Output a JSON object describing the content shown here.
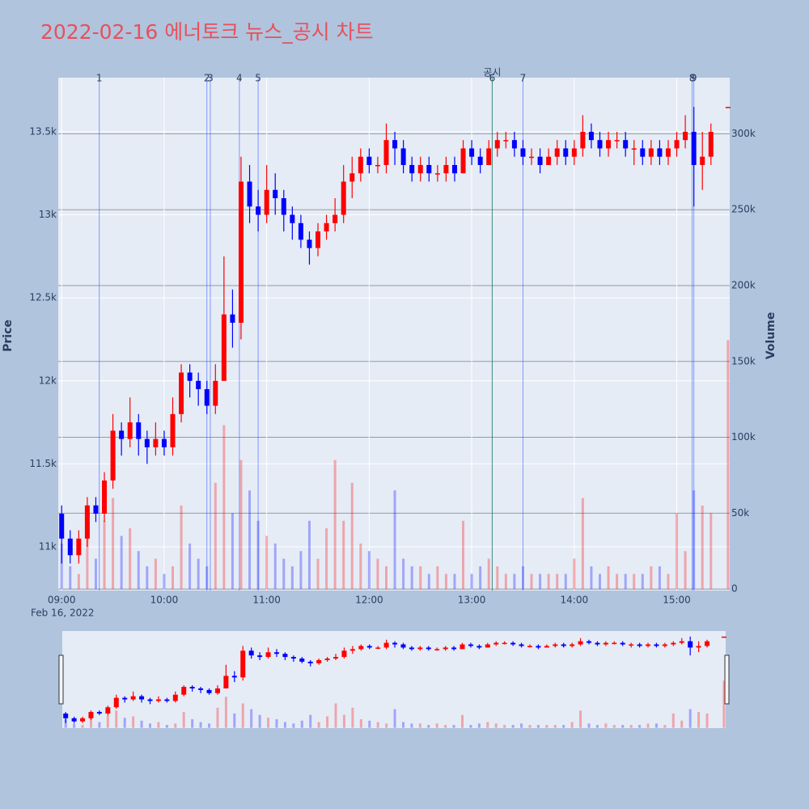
{
  "chart_data": {
    "type": "candlestick",
    "title": "2022-02-16 에너토크 뉴스_공시 차트",
    "y_label": "Price",
    "y2_label": "Volume",
    "x_date_label": "Feb 16, 2022",
    "x": [
      "09:00",
      "09:05",
      "09:10",
      "09:15",
      "09:20",
      "09:25",
      "09:30",
      "09:35",
      "09:40",
      "09:45",
      "09:50",
      "09:55",
      "10:00",
      "10:05",
      "10:10",
      "10:15",
      "10:20",
      "10:25",
      "10:30",
      "10:35",
      "10:40",
      "10:45",
      "10:50",
      "10:55",
      "11:00",
      "11:05",
      "11:10",
      "11:15",
      "11:20",
      "11:25",
      "11:30",
      "11:35",
      "11:40",
      "11:45",
      "11:50",
      "11:55",
      "12:00",
      "12:05",
      "12:10",
      "12:15",
      "12:20",
      "12:25",
      "12:30",
      "12:35",
      "12:40",
      "12:45",
      "12:50",
      "12:55",
      "13:00",
      "13:05",
      "13:10",
      "13:15",
      "13:20",
      "13:25",
      "13:30",
      "13:35",
      "13:40",
      "13:45",
      "13:50",
      "13:55",
      "14:00",
      "14:05",
      "14:10",
      "14:15",
      "14:20",
      "14:25",
      "14:30",
      "14:35",
      "14:40",
      "14:45",
      "14:50",
      "14:55",
      "15:00",
      "15:05",
      "15:10",
      "15:15",
      "15:20",
      "15:30"
    ],
    "open": [
      11200,
      11050,
      10950,
      11050,
      11250,
      11200,
      11400,
      11700,
      11650,
      11750,
      11650,
      11600,
      11650,
      11600,
      11800,
      12050,
      12000,
      11950,
      11850,
      12000,
      12400,
      12350,
      13200,
      13050,
      13000,
      13150,
      13100,
      13000,
      12950,
      12850,
      12800,
      12900,
      12950,
      13000,
      13200,
      13250,
      13350,
      13300,
      13300,
      13450,
      13400,
      13300,
      13250,
      13300,
      13250,
      13250,
      13300,
      13250,
      13400,
      13350,
      13300,
      13400,
      13450,
      13450,
      13400,
      13350,
      13350,
      13300,
      13350,
      13400,
      13350,
      13400,
      13500,
      13450,
      13400,
      13450,
      13450,
      13400,
      13400,
      13350,
      13400,
      13350,
      13400,
      13450,
      13500,
      13300,
      13350,
      13650
    ],
    "high": [
      11250,
      11100,
      11100,
      11300,
      11300,
      11450,
      11800,
      11750,
      11900,
      11800,
      11700,
      11750,
      11700,
      11900,
      12100,
      12100,
      12050,
      12000,
      12100,
      12750,
      12550,
      13350,
      13300,
      13150,
      13300,
      13250,
      13150,
      13050,
      13000,
      12900,
      12950,
      13000,
      13100,
      13300,
      13350,
      13400,
      13400,
      13350,
      13550,
      13500,
      13450,
      13350,
      13350,
      13350,
      13300,
      13350,
      13350,
      13450,
      13450,
      13400,
      13450,
      13500,
      13500,
      13500,
      13450,
      13400,
      13400,
      13400,
      13450,
      13450,
      13450,
      13600,
      13550,
      13500,
      13500,
      13500,
      13500,
      13450,
      13450,
      13450,
      13450,
      13450,
      13500,
      13600,
      13650,
      13500,
      13550,
      13650
    ],
    "low": [
      10900,
      10900,
      10900,
      11000,
      11150,
      11150,
      11350,
      11550,
      11600,
      11550,
      11500,
      11550,
      11550,
      11550,
      11750,
      11900,
      11850,
      11800,
      11800,
      12000,
      12200,
      12250,
      12950,
      12900,
      12950,
      13000,
      12900,
      12850,
      12800,
      12700,
      12750,
      12850,
      12900,
      12950,
      13100,
      13200,
      13250,
      13250,
      13250,
      13300,
      13250,
      13200,
      13200,
      13200,
      13200,
      13200,
      13200,
      13250,
      13300,
      13250,
      13300,
      13350,
      13400,
      13350,
      13300,
      13300,
      13250,
      13300,
      13300,
      13300,
      13300,
      13350,
      13400,
      13350,
      13350,
      13400,
      13350,
      13300,
      13300,
      13300,
      13300,
      13300,
      13350,
      13400,
      13050,
      13150,
      13300,
      13650
    ],
    "close": [
      11050,
      10950,
      11050,
      11250,
      11200,
      11400,
      11700,
      11650,
      11750,
      11650,
      11600,
      11650,
      11600,
      11800,
      12050,
      12000,
      11950,
      11850,
      12000,
      12400,
      12350,
      13200,
      13050,
      13000,
      13150,
      13100,
      13000,
      12950,
      12850,
      12800,
      12900,
      12950,
      13000,
      13200,
      13250,
      13350,
      13300,
      13300,
      13450,
      13400,
      13300,
      13250,
      13300,
      13250,
      13250,
      13300,
      13250,
      13400,
      13350,
      13300,
      13400,
      13450,
      13450,
      13400,
      13350,
      13350,
      13300,
      13350,
      13400,
      13350,
      13400,
      13500,
      13450,
      13400,
      13450,
      13450,
      13400,
      13400,
      13350,
      13400,
      13350,
      13400,
      13450,
      13500,
      13300,
      13350,
      13500,
      13650
    ],
    "volume": [
      30000,
      15000,
      10000,
      40000,
      20000,
      45000,
      60000,
      35000,
      40000,
      25000,
      15000,
      20000,
      10000,
      15000,
      55000,
      30000,
      20000,
      15000,
      70000,
      108000,
      50000,
      85000,
      65000,
      45000,
      35000,
      30000,
      20000,
      15000,
      25000,
      45000,
      20000,
      40000,
      85000,
      45000,
      70000,
      30000,
      25000,
      20000,
      15000,
      65000,
      20000,
      15000,
      15000,
      10000,
      15000,
      10000,
      10000,
      45000,
      10000,
      15000,
      20000,
      15000,
      10000,
      10000,
      15000,
      10000,
      10000,
      10000,
      10000,
      10000,
      20000,
      60000,
      15000,
      10000,
      15000,
      10000,
      10000,
      10000,
      10000,
      15000,
      15000,
      10000,
      50000,
      25000,
      65000,
      55000,
      50000,
      164000
    ],
    "increasing_color": "#ff0000",
    "decreasing_color": "#0000ff",
    "xlim": [
      "08:58",
      "15:31"
    ],
    "xticks": [
      "09:00",
      "10:00",
      "11:00",
      "12:00",
      "13:00",
      "14:00",
      "15:00"
    ],
    "ylim": [
      10737,
      13826
    ],
    "yticks": [
      {
        "value": 11000,
        "label": "11k"
      },
      {
        "value": 11500,
        "label": "11.5k"
      },
      {
        "value": 12000,
        "label": "12k"
      },
      {
        "value": 12500,
        "label": "12.5k"
      },
      {
        "value": 13000,
        "label": "13k"
      },
      {
        "value": 13500,
        "label": "13.5k"
      }
    ],
    "y2lim": [
      -1000,
      337000
    ],
    "y2ticks": [
      0,
      {
        "value": 50000,
        "label": "50k"
      },
      {
        "value": 100000,
        "label": "100k"
      },
      {
        "value": 150000,
        "label": "150k"
      },
      {
        "value": 200000,
        "label": "200k"
      },
      {
        "value": 250000,
        "label": "250k"
      },
      {
        "value": 300000,
        "label": "300k"
      }
    ],
    "grid": true,
    "events": [
      {
        "label": "1",
        "x": "09:22"
      },
      {
        "label": "2",
        "x": "10:25"
      },
      {
        "label": "3",
        "x": "10:27"
      },
      {
        "label": "4",
        "x": "10:44"
      },
      {
        "label": "5",
        "x": "10:55"
      },
      {
        "label": "6",
        "x": "13:12"
      },
      {
        "label": "7",
        "x": "13:30"
      },
      {
        "label": "8",
        "x": "15:09"
      },
      {
        "label": "9",
        "x": "15:10"
      }
    ],
    "disclosures": [
      {
        "label": "공시",
        "x": "13:12"
      }
    ],
    "rangeslider": true
  }
}
